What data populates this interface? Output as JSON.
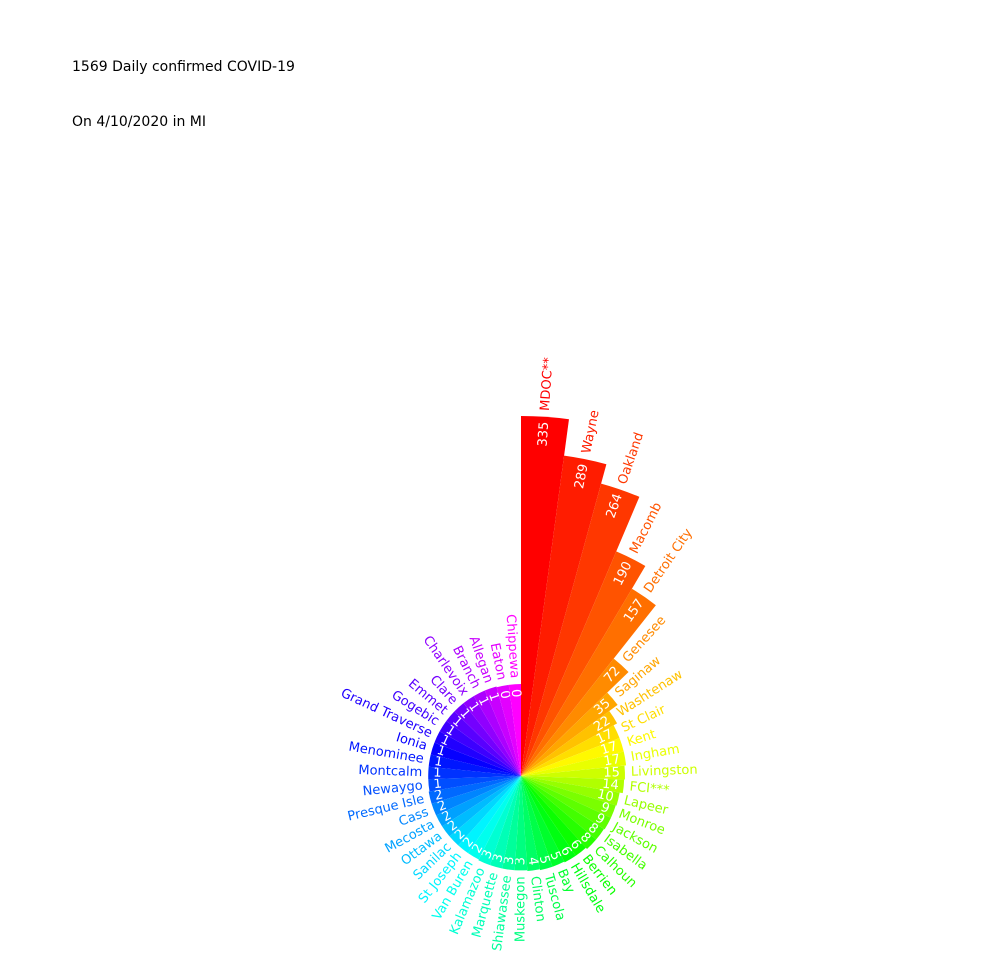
{
  "header": {
    "line1": "1569 Daily confirmed COVID-19",
    "line2": "On 4/10/2020 in MI"
  },
  "chart_data": {
    "type": "bar",
    "polar": true,
    "colormap": "gist_rainbow",
    "categories": [
      "MDOC**",
      "Wayne",
      "Oakland",
      "Macomb",
      "Detroit City",
      "Genesee",
      "Saginaw",
      "Washtenaw",
      "St Clair",
      "Kent",
      "Ingham",
      "Livingston",
      "FCI***",
      "Lapeer",
      "Monroe",
      "Jackson",
      "Isabella",
      "Calhoun",
      "Berrien",
      "Hillsdale",
      "Bay",
      "Tuscola",
      "Clinton",
      "Muskegon",
      "Shiawassee",
      "Marquette",
      "Kalamazoo",
      "Van Buren",
      "St Joseph",
      "Sanilac",
      "Ottawa",
      "Mecosta",
      "Cass",
      "Presque Isle",
      "Newaygo",
      "Montcalm",
      "Menominee",
      "Ionia",
      "Grand Traverse",
      "Gogebic",
      "Emmet",
      "Clare",
      "Charlevoix",
      "Branch",
      "Allegan",
      "Eaton",
      "Chippewa"
    ],
    "values": [
      335,
      289,
      264,
      190,
      157,
      72,
      35,
      22,
      17,
      17,
      17,
      15,
      14,
      10,
      9,
      9,
      8,
      8,
      6,
      6,
      5,
      5,
      4,
      3,
      3,
      3,
      3,
      2,
      2,
      2,
      2,
      2,
      2,
      2,
      1,
      1,
      1,
      1,
      1,
      1,
      1,
      1,
      1,
      1,
      1,
      0,
      0
    ]
  }
}
